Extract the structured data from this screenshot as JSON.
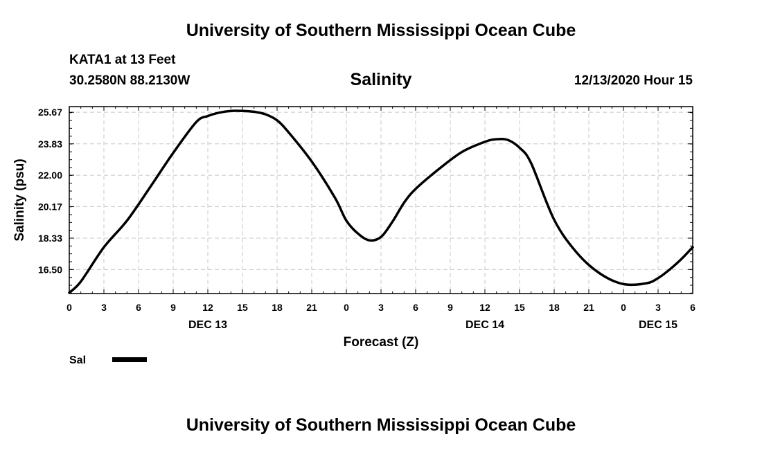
{
  "header": {
    "organization": "University of Southern Mississippi Ocean Cube",
    "station": "KATA1 at 13 Feet",
    "location": "30.2580N 88.2130W",
    "issued": "12/13/2020 Hour 15"
  },
  "footer": {
    "organization": "University of Southern Mississippi Ocean Cube"
  },
  "chart_data": {
    "type": "line",
    "title": "Salinity",
    "xlabel": "Forecast (Z)",
    "ylabel": "Salinity (psu)",
    "x_unit": "forecast hour from 2020-12-13 00Z",
    "xlim": [
      0,
      54
    ],
    "ylim": [
      15.1,
      26.0
    ],
    "x_ticks": [
      0,
      3,
      6,
      9,
      12,
      15,
      18,
      21,
      24,
      27,
      30,
      33,
      36,
      39,
      42,
      45,
      48,
      51,
      54
    ],
    "x_tick_labels": [
      "0",
      "3",
      "6",
      "9",
      "12",
      "15",
      "18",
      "21",
      "0",
      "3",
      "6",
      "9",
      "12",
      "15",
      "18",
      "21",
      "0",
      "3",
      "6"
    ],
    "y_ticks": [
      16.5,
      18.33,
      20.17,
      22.0,
      23.83,
      25.67
    ],
    "y_tick_labels": [
      "16.50",
      "18.33",
      "20.17",
      "22.00",
      "23.83",
      "25.67"
    ],
    "day_labels": [
      {
        "x": 12,
        "label": "DEC 13"
      },
      {
        "x": 36,
        "label": "DEC 14"
      },
      {
        "x": 51,
        "label": "DEC 15"
      }
    ],
    "grid": true,
    "legend_position": "bottom-left",
    "series": [
      {
        "name": "Sal",
        "color": "#000000",
        "x": [
          0,
          1,
          3,
          5,
          7,
          9,
          11,
          12,
          13,
          14,
          15,
          16,
          17,
          18,
          19,
          21,
          23,
          24,
          25,
          26,
          27,
          28,
          29,
          30,
          32,
          34,
          36,
          37,
          38,
          39,
          40,
          42,
          44,
          46,
          48,
          50,
          51,
          52,
          53,
          54
        ],
        "values": [
          15.15,
          15.8,
          17.8,
          19.35,
          21.3,
          23.3,
          25.1,
          25.45,
          25.65,
          25.75,
          25.75,
          25.7,
          25.55,
          25.2,
          24.5,
          22.8,
          20.7,
          19.35,
          18.6,
          18.2,
          18.4,
          19.3,
          20.4,
          21.2,
          22.35,
          23.35,
          23.95,
          24.1,
          24.05,
          23.6,
          22.7,
          19.4,
          17.45,
          16.25,
          15.65,
          15.7,
          16.0,
          16.5,
          17.1,
          17.8
        ]
      }
    ]
  }
}
